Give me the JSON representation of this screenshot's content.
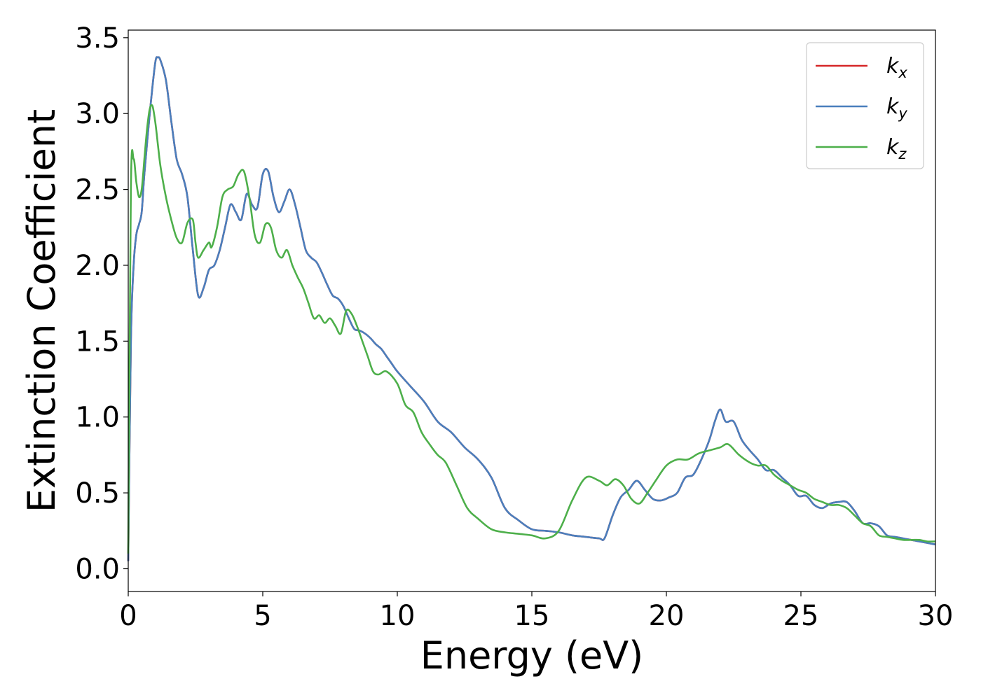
{
  "chart_data": {
    "type": "line",
    "xlabel": "Energy (eV)",
    "ylabel": "Extinction Coefficient",
    "xlim": [
      0,
      30
    ],
    "ylim": [
      -0.15,
      3.55
    ],
    "xticks": [
      "0",
      "5",
      "10",
      "15",
      "20",
      "25",
      "30"
    ],
    "yticks": [
      "0.0",
      "0.5",
      "1.0",
      "1.5",
      "2.0",
      "2.5",
      "3.0",
      "3.5"
    ],
    "grid": false,
    "legend_position": "top-right",
    "series": [
      {
        "name": "k_x",
        "label_main": "k",
        "label_sub": "x",
        "color": "#d62728",
        "x": [
          0,
          0.1,
          0.2,
          0.3,
          0.4,
          0.5,
          0.6,
          0.8,
          1.0,
          1.1,
          1.2,
          1.4,
          1.6,
          1.8,
          2.0,
          2.2,
          2.4,
          2.6,
          2.8,
          3.0,
          3.2,
          3.4,
          3.6,
          3.8,
          4.0,
          4.2,
          4.4,
          4.6,
          4.8,
          5.0,
          5.2,
          5.4,
          5.6,
          5.8,
          6.0,
          6.2,
          6.4,
          6.6,
          6.8,
          7.0,
          7.2,
          7.4,
          7.6,
          7.8,
          8.0,
          8.2,
          8.4,
          8.6,
          8.8,
          9.0,
          9.2,
          9.4,
          9.6,
          9.8,
          10.0,
          10.5,
          11.0,
          11.5,
          12.0,
          12.5,
          13.0,
          13.5,
          14.0,
          14.5,
          15.0,
          15.5,
          16.0,
          16.5,
          17.0,
          17.5,
          17.7,
          18.0,
          18.3,
          18.6,
          18.9,
          19.2,
          19.5,
          19.8,
          20.1,
          20.4,
          20.7,
          21.0,
          21.3,
          21.6,
          21.8,
          22.0,
          22.2,
          22.5,
          22.8,
          23.1,
          23.4,
          23.7,
          24.0,
          24.3,
          24.6,
          24.9,
          25.2,
          25.5,
          25.8,
          26.1,
          26.4,
          26.7,
          27.0,
          27.3,
          27.6,
          27.9,
          28.2,
          28.5,
          28.8,
          29.1,
          29.4,
          29.7,
          30.0
        ],
        "y": [
          0.05,
          1.5,
          2.0,
          2.2,
          2.27,
          2.35,
          2.6,
          3.0,
          3.33,
          3.37,
          3.35,
          3.22,
          2.95,
          2.7,
          2.6,
          2.45,
          2.1,
          1.8,
          1.85,
          1.97,
          2.0,
          2.1,
          2.25,
          2.4,
          2.35,
          2.3,
          2.47,
          2.4,
          2.38,
          2.6,
          2.62,
          2.45,
          2.35,
          2.42,
          2.5,
          2.4,
          2.25,
          2.1,
          2.05,
          2.02,
          1.95,
          1.87,
          1.8,
          1.78,
          1.73,
          1.65,
          1.58,
          1.57,
          1.55,
          1.52,
          1.48,
          1.45,
          1.4,
          1.35,
          1.3,
          1.2,
          1.1,
          0.97,
          0.9,
          0.8,
          0.72,
          0.6,
          0.4,
          0.32,
          0.26,
          0.25,
          0.24,
          0.22,
          0.21,
          0.2,
          0.2,
          0.35,
          0.47,
          0.52,
          0.58,
          0.52,
          0.46,
          0.45,
          0.47,
          0.5,
          0.6,
          0.62,
          0.72,
          0.85,
          0.97,
          1.05,
          0.97,
          0.97,
          0.85,
          0.78,
          0.72,
          0.65,
          0.65,
          0.6,
          0.55,
          0.48,
          0.48,
          0.42,
          0.4,
          0.43,
          0.44,
          0.44,
          0.38,
          0.3,
          0.3,
          0.28,
          0.22,
          0.21,
          0.2,
          0.19,
          0.18,
          0.17,
          0.16
        ]
      },
      {
        "name": "k_y",
        "label_main": "k",
        "label_sub": "y",
        "color": "#4a7fbd",
        "x": [
          0,
          0.1,
          0.2,
          0.3,
          0.4,
          0.5,
          0.6,
          0.8,
          1.0,
          1.1,
          1.2,
          1.4,
          1.6,
          1.8,
          2.0,
          2.2,
          2.4,
          2.6,
          2.8,
          3.0,
          3.2,
          3.4,
          3.6,
          3.8,
          4.0,
          4.2,
          4.4,
          4.6,
          4.8,
          5.0,
          5.2,
          5.4,
          5.6,
          5.8,
          6.0,
          6.2,
          6.4,
          6.6,
          6.8,
          7.0,
          7.2,
          7.4,
          7.6,
          7.8,
          8.0,
          8.2,
          8.4,
          8.6,
          8.8,
          9.0,
          9.2,
          9.4,
          9.6,
          9.8,
          10.0,
          10.5,
          11.0,
          11.5,
          12.0,
          12.5,
          13.0,
          13.5,
          14.0,
          14.5,
          15.0,
          15.5,
          16.0,
          16.5,
          17.0,
          17.5,
          17.7,
          18.0,
          18.3,
          18.6,
          18.9,
          19.2,
          19.5,
          19.8,
          20.1,
          20.4,
          20.7,
          21.0,
          21.3,
          21.6,
          21.8,
          22.0,
          22.2,
          22.5,
          22.8,
          23.1,
          23.4,
          23.7,
          24.0,
          24.3,
          24.6,
          24.9,
          25.2,
          25.5,
          25.8,
          26.1,
          26.4,
          26.7,
          27.0,
          27.3,
          27.6,
          27.9,
          28.2,
          28.5,
          28.8,
          29.1,
          29.4,
          29.7,
          30.0
        ],
        "y": [
          0.05,
          1.5,
          2.0,
          2.2,
          2.27,
          2.35,
          2.6,
          3.0,
          3.33,
          3.37,
          3.35,
          3.22,
          2.95,
          2.7,
          2.6,
          2.45,
          2.1,
          1.8,
          1.85,
          1.97,
          2.0,
          2.1,
          2.25,
          2.4,
          2.35,
          2.3,
          2.47,
          2.4,
          2.38,
          2.6,
          2.62,
          2.45,
          2.35,
          2.42,
          2.5,
          2.4,
          2.25,
          2.1,
          2.05,
          2.02,
          1.95,
          1.87,
          1.8,
          1.78,
          1.73,
          1.65,
          1.58,
          1.57,
          1.55,
          1.52,
          1.48,
          1.45,
          1.4,
          1.35,
          1.3,
          1.2,
          1.1,
          0.97,
          0.9,
          0.8,
          0.72,
          0.6,
          0.4,
          0.32,
          0.26,
          0.25,
          0.24,
          0.22,
          0.21,
          0.2,
          0.2,
          0.35,
          0.47,
          0.52,
          0.58,
          0.52,
          0.46,
          0.45,
          0.47,
          0.5,
          0.6,
          0.62,
          0.72,
          0.85,
          0.97,
          1.05,
          0.97,
          0.97,
          0.85,
          0.78,
          0.72,
          0.65,
          0.65,
          0.6,
          0.55,
          0.48,
          0.48,
          0.42,
          0.4,
          0.43,
          0.44,
          0.44,
          0.38,
          0.3,
          0.3,
          0.28,
          0.22,
          0.21,
          0.2,
          0.19,
          0.18,
          0.17,
          0.16
        ]
      },
      {
        "name": "k_z",
        "label_main": "k",
        "label_sub": "z",
        "color": "#4daf4a",
        "x": [
          0,
          0.1,
          0.2,
          0.3,
          0.4,
          0.5,
          0.6,
          0.7,
          0.8,
          0.9,
          1.0,
          1.1,
          1.2,
          1.4,
          1.6,
          1.8,
          2.0,
          2.2,
          2.4,
          2.5,
          2.6,
          2.8,
          3.0,
          3.1,
          3.3,
          3.5,
          3.7,
          3.9,
          4.1,
          4.3,
          4.5,
          4.7,
          4.9,
          5.1,
          5.3,
          5.5,
          5.7,
          5.9,
          6.1,
          6.3,
          6.5,
          6.7,
          6.9,
          7.1,
          7.3,
          7.5,
          7.7,
          7.9,
          8.1,
          8.3,
          8.5,
          8.7,
          8.9,
          9.1,
          9.3,
          9.6,
          10.0,
          10.3,
          10.6,
          10.9,
          11.2,
          11.5,
          11.8,
          12.2,
          12.6,
          13.0,
          13.5,
          14.0,
          14.5,
          15.0,
          15.5,
          16.0,
          16.5,
          17.0,
          17.5,
          17.8,
          18.1,
          18.4,
          18.7,
          19.0,
          19.3,
          19.6,
          20.0,
          20.4,
          20.8,
          21.2,
          21.6,
          22.0,
          22.3,
          22.7,
          23.1,
          23.4,
          23.7,
          24.0,
          24.3,
          24.6,
          24.9,
          25.2,
          25.5,
          25.8,
          26.1,
          26.4,
          26.7,
          27.0,
          27.3,
          27.6,
          27.9,
          28.2,
          28.5,
          28.8,
          29.1,
          29.4,
          29.7,
          30.0
        ],
        "y": [
          0.1,
          2.5,
          2.7,
          2.55,
          2.45,
          2.5,
          2.7,
          2.9,
          3.03,
          3.05,
          2.95,
          2.8,
          2.65,
          2.45,
          2.3,
          2.18,
          2.15,
          2.28,
          2.3,
          2.15,
          2.05,
          2.1,
          2.15,
          2.12,
          2.25,
          2.45,
          2.5,
          2.52,
          2.6,
          2.62,
          2.45,
          2.2,
          2.15,
          2.27,
          2.25,
          2.1,
          2.05,
          2.1,
          2.0,
          1.92,
          1.85,
          1.75,
          1.65,
          1.67,
          1.62,
          1.65,
          1.6,
          1.55,
          1.7,
          1.68,
          1.6,
          1.5,
          1.4,
          1.3,
          1.28,
          1.3,
          1.22,
          1.08,
          1.03,
          0.9,
          0.82,
          0.75,
          0.7,
          0.55,
          0.4,
          0.33,
          0.26,
          0.24,
          0.23,
          0.22,
          0.2,
          0.25,
          0.45,
          0.6,
          0.58,
          0.55,
          0.59,
          0.55,
          0.46,
          0.43,
          0.5,
          0.58,
          0.68,
          0.72,
          0.72,
          0.76,
          0.78,
          0.8,
          0.82,
          0.75,
          0.7,
          0.68,
          0.68,
          0.62,
          0.58,
          0.55,
          0.52,
          0.5,
          0.46,
          0.44,
          0.42,
          0.42,
          0.4,
          0.35,
          0.3,
          0.28,
          0.22,
          0.21,
          0.2,
          0.19,
          0.19,
          0.19,
          0.18,
          0.18
        ]
      }
    ]
  }
}
